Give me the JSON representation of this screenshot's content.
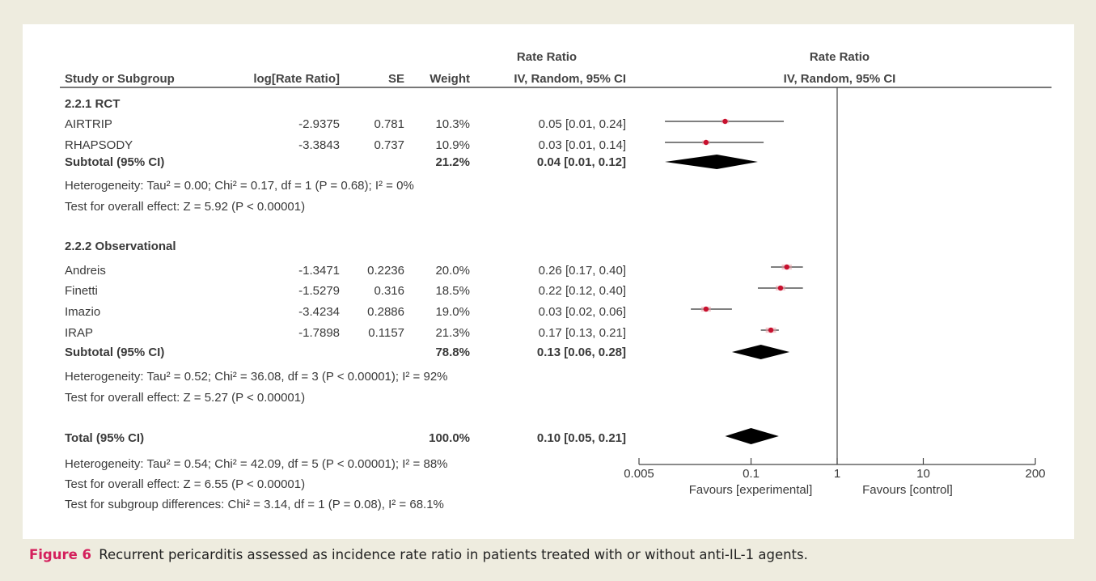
{
  "headers": {
    "study": "Study or Subgroup",
    "log_rr": "log[Rate Ratio]",
    "se": "SE",
    "weight": "Weight",
    "rr_top": "Rate Ratio",
    "rr_method": "IV, Random, 95% CI",
    "plot_top": "Rate Ratio",
    "plot_method": "IV, Random, 95% CI"
  },
  "chart_data": {
    "type": "forest",
    "xscale": "log",
    "xlim": [
      0.005,
      200
    ],
    "ticks": [
      "0.005",
      "0.1",
      "1",
      "10",
      "200"
    ],
    "tick_values": [
      0.005,
      0.1,
      1,
      10,
      200
    ],
    "reference_line": 1,
    "favours_left": "Favours [experimental]",
    "favours_right": "Favours [control]",
    "subgroups": [
      {
        "title": "2.2.1 RCT",
        "studies": [
          {
            "name": "AIRTRIP",
            "log_rr": "-2.9375",
            "se": "0.781",
            "weight": "10.3%",
            "ci_text": "0.05 [0.01, 0.24]",
            "est": 0.05,
            "lo": 0.01,
            "hi": 0.24
          },
          {
            "name": "RHAPSODY",
            "log_rr": "-3.3843",
            "se": "0.737",
            "weight": "10.9%",
            "ci_text": "0.03 [0.01, 0.14]",
            "est": 0.03,
            "lo": 0.01,
            "hi": 0.14
          }
        ],
        "subtotal": {
          "label": "Subtotal (95% CI)",
          "weight": "21.2%",
          "ci_text": "0.04 [0.01, 0.12]",
          "est": 0.04,
          "lo": 0.01,
          "hi": 0.12
        },
        "heterogeneity": "Heterogeneity: Tau² = 0.00; Chi² = 0.17, df = 1 (P = 0.68); I² = 0%",
        "overall": "Test for overall effect: Z = 5.92 (P < 0.00001)"
      },
      {
        "title": "2.2.2 Observational",
        "studies": [
          {
            "name": "Andreis",
            "log_rr": "-1.3471",
            "se": "0.2236",
            "weight": "20.0%",
            "ci_text": "0.26 [0.17, 0.40]",
            "est": 0.26,
            "lo": 0.17,
            "hi": 0.4
          },
          {
            "name": "Finetti",
            "log_rr": "-1.5279",
            "se": "0.316",
            "weight": "18.5%",
            "ci_text": "0.22 [0.12, 0.40]",
            "est": 0.22,
            "lo": 0.12,
            "hi": 0.4
          },
          {
            "name": "Imazio",
            "log_rr": "-3.4234",
            "se": "0.2886",
            "weight": "19.0%",
            "ci_text": "0.03 [0.02, 0.06]",
            "est": 0.03,
            "lo": 0.02,
            "hi": 0.06
          },
          {
            "name": "IRAP",
            "log_rr": "-1.7898",
            "se": "0.1157",
            "weight": "21.3%",
            "ci_text": "0.17 [0.13, 0.21]",
            "est": 0.17,
            "lo": 0.13,
            "hi": 0.21
          }
        ],
        "subtotal": {
          "label": "Subtotal (95% CI)",
          "weight": "78.8%",
          "ci_text": "0.13 [0.06, 0.28]",
          "est": 0.13,
          "lo": 0.06,
          "hi": 0.28
        },
        "heterogeneity": "Heterogeneity: Tau² = 0.52; Chi² = 36.08, df = 3 (P < 0.00001); I² = 92%",
        "overall": "Test for overall effect: Z = 5.27 (P < 0.00001)"
      }
    ],
    "total": {
      "label": "Total (95% CI)",
      "weight": "100.0%",
      "ci_text": "0.10 [0.05, 0.21]",
      "est": 0.1,
      "lo": 0.05,
      "hi": 0.21
    },
    "total_heterogeneity": "Heterogeneity: Tau² = 0.54; Chi² = 42.09, df = 5 (P < 0.00001); I² = 88%",
    "total_overall": "Test for overall effect: Z = 6.55 (P < 0.00001)",
    "subgroup_differences": "Test for subgroup differences: Chi² = 3.14, df = 1 (P = 0.08), I² = 68.1%",
    "colors": {
      "point": "#c8102e",
      "line": "#333333",
      "diamond": "#000000"
    }
  },
  "caption": {
    "label": "Figure 6",
    "text": "Recurrent pericarditis assessed as incidence rate ratio in patients treated with or without anti-IL-1 agents."
  }
}
